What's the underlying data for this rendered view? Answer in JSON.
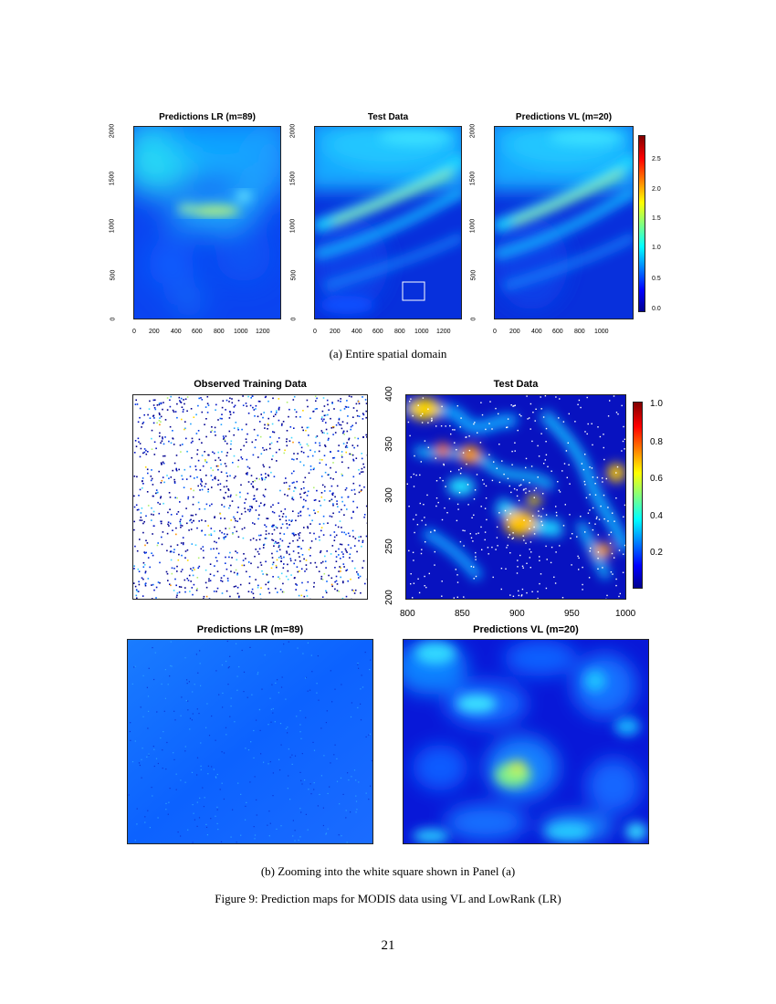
{
  "panel_a": {
    "plots": [
      {
        "title": "Predictions LR (m=89)"
      },
      {
        "title": "Test Data"
      },
      {
        "title": "Predictions VL (m=20)"
      }
    ],
    "y_ticks": [
      "0",
      "500",
      "1000",
      "1500",
      "2000"
    ],
    "x_ticks_1": [
      "0",
      "200",
      "400",
      "600",
      "800",
      "1000",
      "1200"
    ],
    "x_ticks_2": [
      "0",
      "200",
      "400",
      "600",
      "800",
      "1000",
      "1200"
    ],
    "x_ticks_3": [
      "0",
      "200",
      "400",
      "600",
      "800",
      "1000"
    ],
    "colorbar_ticks": [
      "0.0",
      "0.5",
      "1.0",
      "1.5",
      "2.0",
      "2.5"
    ],
    "caption": "(a) Entire spatial domain"
  },
  "panel_b": {
    "titles": {
      "observed": "Observed Training Data",
      "test": "Test Data",
      "pred_lr": "Predictions LR (m=89)",
      "pred_vl": "Predictions VL (m=20)"
    },
    "test_y_ticks": [
      "200",
      "250",
      "300",
      "350",
      "400"
    ],
    "test_x_ticks": [
      "800",
      "850",
      "900",
      "950",
      "1000"
    ],
    "colorbar_ticks": [
      "0.2",
      "0.4",
      "0.6",
      "0.8",
      "1.0"
    ],
    "caption": "(b) Zooming into the white square shown in Panel (a)"
  },
  "figure_caption": "Figure 9: Prediction maps for MODIS data using VL and LowRank (LR)",
  "page_number": "21",
  "colors": {
    "low": "#00008f",
    "mid_low": "#0055ff",
    "mid": "#00d4ff",
    "mid_high": "#ffee00",
    "high": "#8f0000"
  }
}
